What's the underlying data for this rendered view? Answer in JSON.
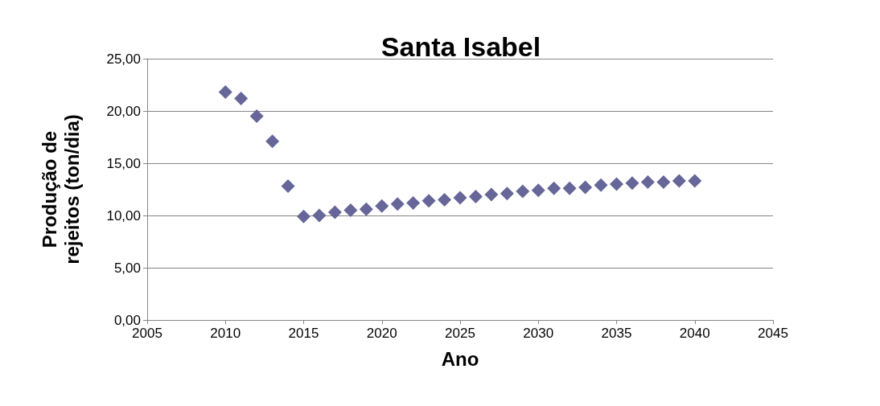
{
  "chart_data": {
    "type": "scatter",
    "title": "Santa Isabel",
    "xlabel": "Ano",
    "ylabel": "Produção de rejeitos (ton/dia)",
    "x": [
      2010,
      2011,
      2012,
      2013,
      2014,
      2015,
      2016,
      2017,
      2018,
      2019,
      2020,
      2021,
      2022,
      2023,
      2024,
      2025,
      2026,
      2027,
      2028,
      2029,
      2030,
      2031,
      2032,
      2033,
      2034,
      2035,
      2036,
      2037,
      2038,
      2039,
      2040
    ],
    "series": [
      {
        "color": "#666699",
        "values": [
          21.8,
          21.2,
          19.5,
          17.1,
          12.8,
          9.9,
          10.0,
          10.3,
          10.5,
          10.6,
          10.9,
          11.1,
          11.2,
          11.4,
          11.5,
          11.7,
          11.8,
          12.0,
          12.1,
          12.3,
          12.4,
          12.6,
          12.6,
          12.7,
          12.9,
          13.0,
          13.1,
          13.2,
          13.2,
          13.3,
          13.3
        ]
      }
    ],
    "xlim": [
      2005,
      2045
    ],
    "xticks": [
      2005,
      2010,
      2015,
      2020,
      2025,
      2030,
      2035,
      2040,
      2045
    ],
    "ylim": [
      0,
      25
    ],
    "yticks": [
      {
        "value": 0,
        "label": "0,00"
      },
      {
        "value": 5,
        "label": "5,00"
      },
      {
        "value": 10,
        "label": "10,00"
      },
      {
        "value": 15,
        "label": "15,00"
      },
      {
        "value": 20,
        "label": "20,00"
      },
      {
        "value": 25,
        "label": "25,00"
      }
    ],
    "grid": "y",
    "marker": "diamond"
  }
}
